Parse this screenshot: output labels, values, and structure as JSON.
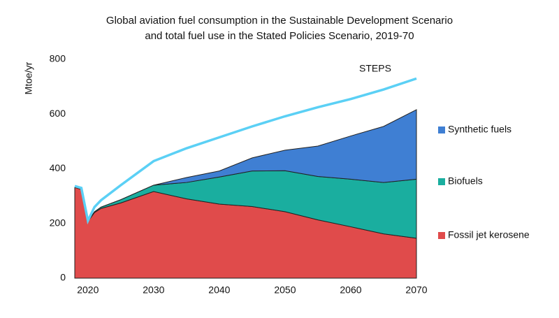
{
  "chart_data": {
    "type": "stacked-area",
    "title": [
      "Global aviation fuel consumption in the Sustainable Development Scenario",
      "and total fuel use in the Stated Policies Scenario, 2019-70"
    ],
    "y_label": "Mtoe/yr",
    "x": [
      2018,
      2019,
      2020,
      2021,
      2022,
      2025,
      2030,
      2035,
      2040,
      2045,
      2050,
      2055,
      2060,
      2065,
      2070
    ],
    "series": [
      {
        "name": "Fossil jet kerosene",
        "color": "#e04b4b",
        "values": [
          332,
          325,
          207,
          240,
          255,
          275,
          317,
          290,
          271,
          262,
          243,
          213,
          188,
          162,
          146
        ]
      },
      {
        "name": "Biofuels",
        "color": "#1aae9f",
        "values": [
          0,
          0,
          0,
          3,
          5,
          12,
          23,
          60,
          99,
          130,
          150,
          159,
          174,
          188,
          216
        ]
      },
      {
        "name": "Synthetic fuels",
        "color": "#3f7fd3",
        "values": [
          0,
          0,
          0,
          0,
          0,
          0,
          0,
          18,
          22,
          48,
          75,
          111,
          158,
          205,
          254
        ]
      },
      {
        "name": "STEPS",
        "color": "#5bd0f5",
        "type": "line",
        "values": [
          337,
          330,
          210,
          260,
          285,
          340,
          428,
          475,
          515,
          555,
          592,
          625,
          655,
          690,
          730
        ]
      }
    ],
    "xlim": [
      2018,
      2070
    ],
    "xticks": [
      2020,
      2030,
      2040,
      2050,
      2060,
      2070
    ],
    "ylim": [
      0,
      800
    ],
    "yticks": [
      0,
      200,
      400,
      600,
      800
    ]
  }
}
